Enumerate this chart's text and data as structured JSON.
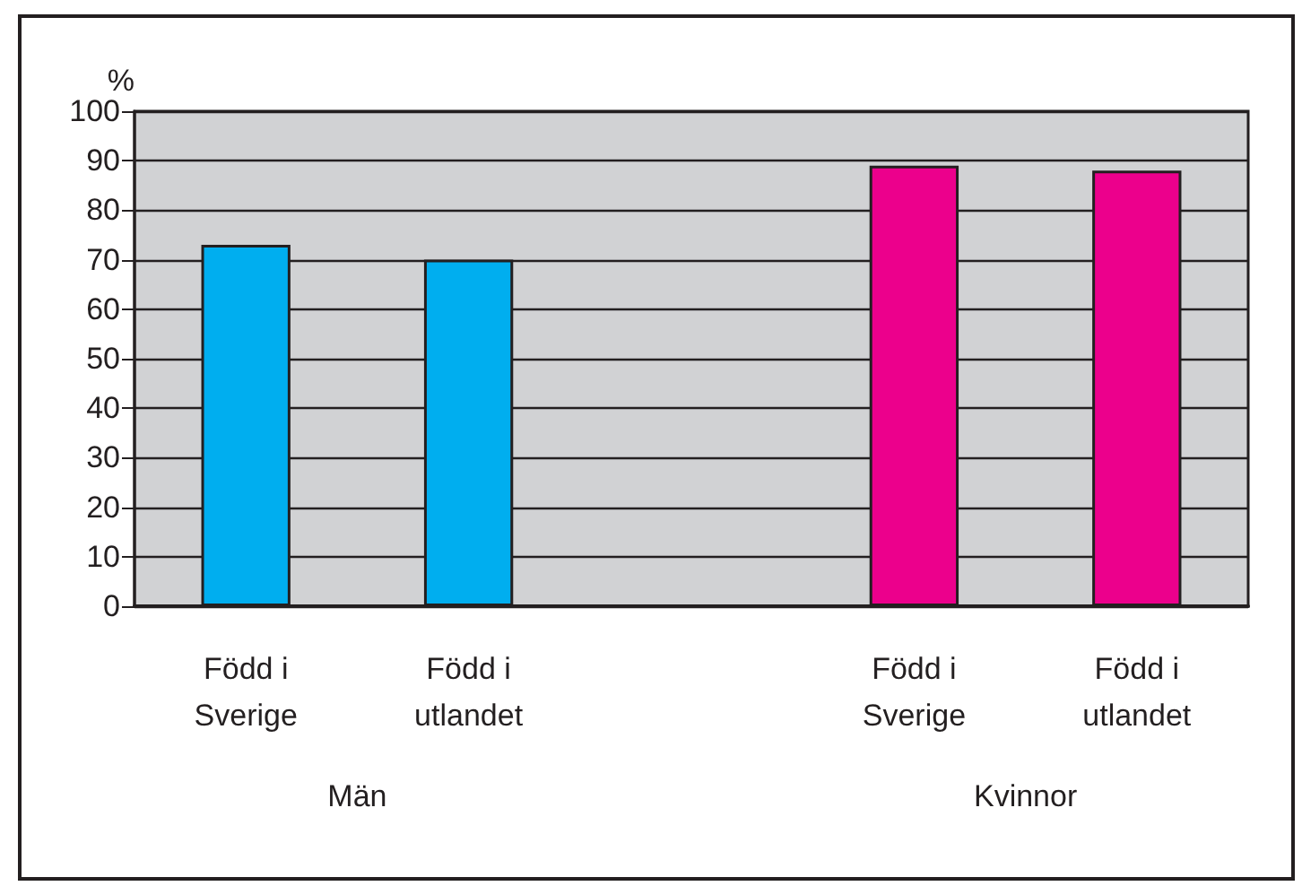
{
  "chart_data": {
    "type": "bar",
    "ylabel": "%",
    "categories": [
      "Född i\nSverige",
      "Född i\nutlandet",
      null,
      "Född i\nSverige",
      "Född i\nutlandet"
    ],
    "values": [
      73,
      70,
      null,
      89,
      88
    ],
    "colors": [
      "#00aeef",
      "#00aeef",
      "#00aeef",
      "#ec008c",
      "#ec008c"
    ],
    "ylim": [
      0,
      100
    ],
    "yticks": [
      0,
      10,
      20,
      30,
      40,
      50,
      60,
      70,
      80,
      90,
      100
    ],
    "grid": "y",
    "annotations": [
      "Män",
      "Kvinnor"
    ]
  }
}
